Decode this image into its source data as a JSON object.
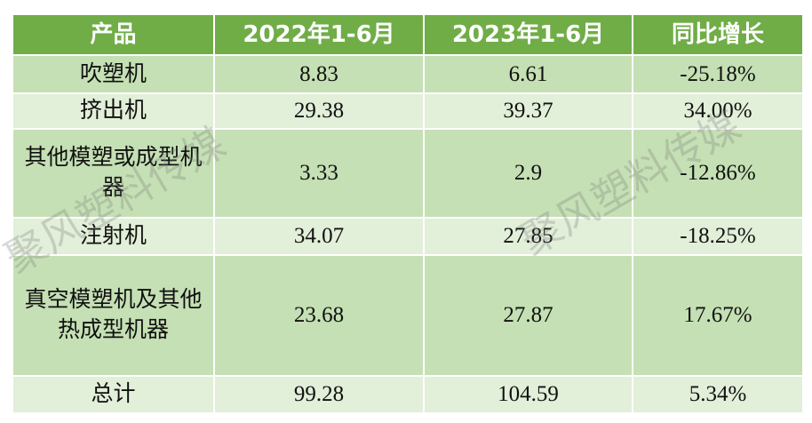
{
  "table": {
    "header": [
      "产品",
      "2022年1-6月",
      "2023年1-6月",
      "同比增长"
    ],
    "rows": [
      [
        "吹塑机",
        "8.83",
        "6.61",
        "-25.18%"
      ],
      [
        "挤出机",
        "29.38",
        "39.37",
        "34.00%"
      ],
      [
        "其他模塑或成型机器",
        "3.33",
        "2.9",
        "-12.86%"
      ],
      [
        "注射机",
        "34.07",
        "27.85",
        "-18.25%"
      ],
      [
        "真空模塑机及其他热成型机器",
        "23.68",
        "27.87",
        "17.67%"
      ],
      [
        "总计",
        "99.28",
        "104.59",
        "5.34%"
      ]
    ]
  },
  "watermark": "聚风塑料传媒"
}
